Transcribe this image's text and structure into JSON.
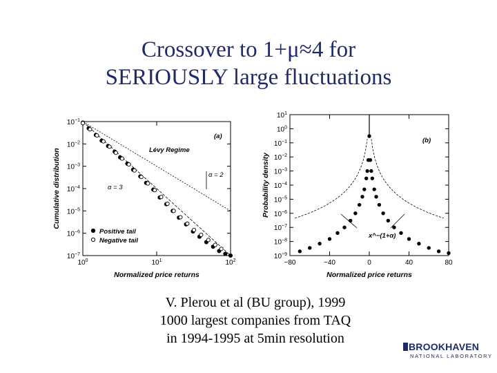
{
  "slide": {
    "title_line1": "Crossover to 1+μ≈4 for",
    "title_line2": "SERIOUSLY large fluctuations",
    "caption_line1": "V. Plerou et al (BU group), 1999",
    "caption_line2": "1000 largest companies from TAQ",
    "caption_line3": "in 1994-1995 at 5min resolution",
    "logo_main": "BROOKHAVEN",
    "logo_sub": "NATIONAL LABORATORY"
  },
  "chart_data": [
    {
      "type": "scatter",
      "panel_label": "(a)",
      "xlabel": "Normalized price returns",
      "ylabel": "Cumulative distribution",
      "x_scale": "log",
      "y_scale": "log",
      "xlim": [
        1,
        100
      ],
      "ylim": [
        1e-07,
        0.1
      ],
      "x_ticks": [
        {
          "value": 1,
          "base": "10",
          "exp": "0"
        },
        {
          "value": 10,
          "base": "10",
          "exp": "1"
        },
        {
          "value": 100,
          "base": "10",
          "exp": "2"
        }
      ],
      "y_ticks": [
        {
          "value": 0.1,
          "base": "10",
          "exp": "−1"
        },
        {
          "value": 0.01,
          "base": "10",
          "exp": "−2"
        },
        {
          "value": 0.001,
          "base": "10",
          "exp": "−3"
        },
        {
          "value": 0.0001,
          "base": "10",
          "exp": "−4"
        },
        {
          "value": 1e-05,
          "base": "10",
          "exp": "−5"
        },
        {
          "value": 1e-06,
          "base": "10",
          "exp": "−6"
        },
        {
          "value": 1e-07,
          "base": "10",
          "exp": "−7"
        }
      ],
      "annotations": {
        "levy": "Lévy Regime",
        "alpha2": "α = 2",
        "alpha3": "α = 3"
      },
      "legend": {
        "placement": "bottom-left",
        "entries": [
          "Positive tail",
          "Negative tail"
        ]
      },
      "series": [
        {
          "name": "Positive tail",
          "marker": "filled-circle",
          "x": [
            1.0,
            1.2,
            1.5,
            1.8,
            2.2,
            2.7,
            3.2,
            4.0,
            4.8,
            6.0,
            7.2,
            9.0,
            11,
            13.5,
            16.5,
            20,
            25,
            31,
            38,
            47,
            58,
            70,
            85,
            100
          ],
          "y": [
            0.09,
            0.05,
            0.025,
            0.014,
            0.008,
            0.0045,
            0.0025,
            0.0013,
            0.0007,
            0.00035,
            0.00018,
            9e-05,
            4e-05,
            2e-05,
            1e-05,
            5e-06,
            2.5e-06,
            1.2e-06,
            7e-07,
            4e-07,
            2.5e-07,
            1.6e-07,
            1.2e-07,
            1e-07
          ]
        },
        {
          "name": "Negative tail",
          "marker": "open-circle",
          "x": [
            1.0,
            1.25,
            1.55,
            1.9,
            2.3,
            2.8,
            3.4,
            4.2,
            5.0,
            6.2,
            7.6,
            9.4,
            11.5,
            14,
            17,
            21,
            26,
            32,
            40,
            50,
            62,
            75
          ],
          "y": [
            0.085,
            0.045,
            0.024,
            0.013,
            0.0075,
            0.004,
            0.0022,
            0.0012,
            0.00065,
            0.00033,
            0.00017,
            8.5e-05,
            4.2e-05,
            2.1e-05,
            1e-05,
            5.2e-06,
            2.7e-06,
            1.4e-06,
            8.5e-07,
            5e-07,
            3e-07,
            2e-07
          ]
        }
      ],
      "reference_lines": [
        {
          "label": "α = 2",
          "x": [
            1,
            100
          ],
          "y": [
            0.1,
            1e-05
          ]
        },
        {
          "label": "α = 3",
          "x": [
            1,
            100
          ],
          "y": [
            0.1,
            1e-07
          ]
        }
      ]
    },
    {
      "type": "scatter",
      "panel_label": "(b)",
      "xlabel": "Normalized price returns",
      "ylabel": "Probability density",
      "x_scale": "linear",
      "y_scale": "log",
      "xlim": [
        -80,
        80
      ],
      "ylim": [
        1e-09,
        10
      ],
      "x_ticks": [
        {
          "value": -80,
          "label": "−80"
        },
        {
          "value": -40,
          "label": "−40"
        },
        {
          "value": 0,
          "label": "0"
        },
        {
          "value": 40,
          "label": "40"
        },
        {
          "value": 80,
          "label": "80"
        }
      ],
      "y_ticks": [
        {
          "value": 10,
          "base": "10",
          "exp": "1"
        },
        {
          "value": 1,
          "base": "10",
          "exp": "0"
        },
        {
          "value": 0.1,
          "base": "10",
          "exp": "−1"
        },
        {
          "value": 0.01,
          "base": "10",
          "exp": "−2"
        },
        {
          "value": 0.001,
          "base": "10",
          "exp": "−3"
        },
        {
          "value": 0.0001,
          "base": "10",
          "exp": "−4"
        },
        {
          "value": 1e-05,
          "base": "10",
          "exp": "−5"
        },
        {
          "value": 1e-06,
          "base": "10",
          "exp": "−6"
        },
        {
          "value": 1e-07,
          "base": "10",
          "exp": "−7"
        },
        {
          "value": 1e-08,
          "base": "10",
          "exp": "−8"
        },
        {
          "value": 1e-09,
          "base": "10",
          "exp": "−9"
        }
      ],
      "annotations": {
        "power_law": "x^−(1+α)"
      },
      "series": [
        {
          "marker": "filled-circle",
          "x": [
            -70,
            -60,
            -50,
            -40,
            -32,
            -25,
            -19,
            -14,
            -10,
            -7,
            -5,
            -3,
            -2,
            -1,
            0,
            1,
            2,
            3,
            5,
            7,
            10,
            14,
            19,
            25,
            32,
            40,
            50,
            60,
            70,
            80
          ],
          "y": [
            2e-09,
            3.5e-09,
            7e-09,
            1.5e-08,
            4e-08,
            1e-07,
            3e-07,
            1e-06,
            4e-06,
            1.5e-05,
            5e-05,
            0.0003,
            0.001,
            0.006,
            0.3,
            0.006,
            0.001,
            0.0003,
            5e-05,
            1.5e-05,
            4e-06,
            1e-06,
            3e-07,
            1e-07,
            4e-08,
            1.5e-08,
            7e-09,
            3.5e-09,
            2e-09,
            1.5e-09
          ]
        }
      ]
    }
  ]
}
